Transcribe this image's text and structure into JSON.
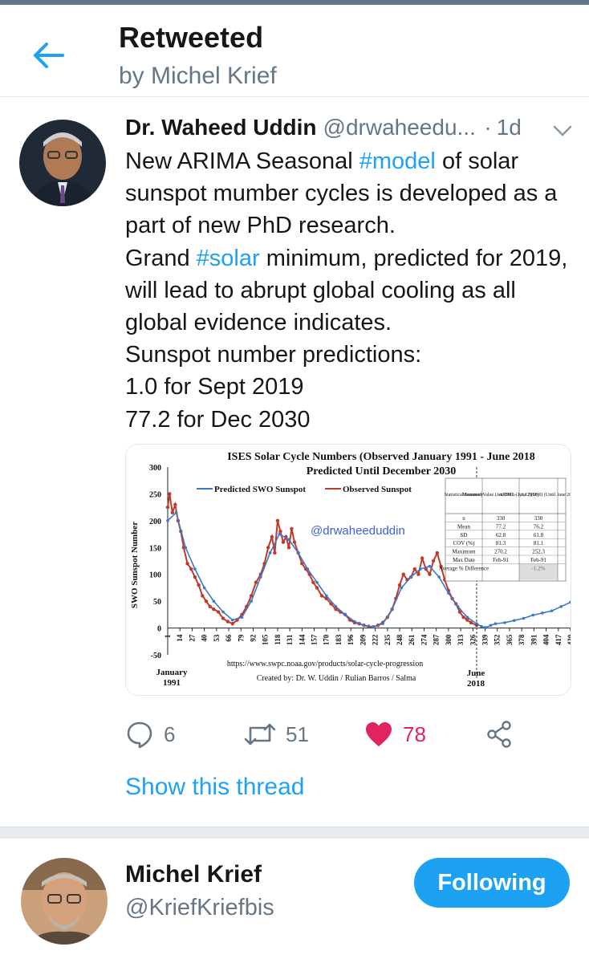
{
  "header": {
    "title": "Retweeted",
    "subtitle": "by Michel Krief",
    "back_icon": "arrow-left-icon"
  },
  "tweet": {
    "author_name": "Dr. Waheed Uddin",
    "author_handle": "@drwaheedu...",
    "separator": "·",
    "time": "1d",
    "body_segments": [
      {
        "text": "New ARIMA Seasonal ",
        "type": "text"
      },
      {
        "text": "#model",
        "type": "hashtag"
      },
      {
        "text": " of solar sunspot mumber cycles is developed as a part of new PhD research.",
        "type": "text"
      },
      {
        "text": "\n",
        "type": "break"
      },
      {
        "text": "Grand ",
        "type": "text"
      },
      {
        "text": "#solar",
        "type": "hashtag"
      },
      {
        "text": " minimum, predicted for 2019, will lead to abrupt global cooling as all global evidence indicates.",
        "type": "text"
      },
      {
        "text": "\n",
        "type": "break"
      },
      {
        "text": "Sunspot number predictions:",
        "type": "text"
      },
      {
        "text": "\n",
        "type": "break"
      },
      {
        "text": "1.0 for  Sept 2019",
        "type": "text"
      },
      {
        "text": "\n",
        "type": "break"
      },
      {
        "text": "77.2 for Dec 2030",
        "type": "text"
      }
    ],
    "actions": {
      "replies": "6",
      "retweets": "51",
      "likes": "78",
      "reply_icon": "reply-bubble-icon",
      "retweet_icon": "retweet-icon",
      "like_icon": "heart-icon",
      "share_icon": "share-icon"
    },
    "show_thread": "Show this thread"
  },
  "chart_image": {
    "title_line1": "ISES Solar Cycle Numbers (Observed January 1991 - June 2018",
    "title_line2": "Predicted Until December 2030",
    "ylabel": "SWO Sunspot Number",
    "watermark": "@drwaheeduddin",
    "credit_url": "https://www.swpc.noaa.gov/products/solar-cycle-progression",
    "credit_by": "Created by: Dr. W. Uddin / Rulian Barros / Salma",
    "x_start_label": [
      "January",
      "1991"
    ],
    "x_june_label": [
      "June",
      "2018"
    ],
    "legend": [
      "Predicted SWO Sunspot",
      "Observed Sunspot"
    ],
    "table": {
      "headers": [
        "Statistical Summary",
        "Measured Value (Jan 1991 - June 2018)",
        "ARIMA (1,1,12)(60,0) (Until June 2018)"
      ],
      "rows": [
        [
          "n",
          "330",
          "330"
        ],
        [
          "Mean",
          "77.2",
          "76.2"
        ],
        [
          "SD",
          "62.8",
          "61.8"
        ],
        [
          "COV (%)",
          "81.3",
          "81.1"
        ],
        [
          "Maximum",
          "270.2",
          "252.3"
        ],
        [
          "Max Date",
          "Feb-91",
          "Feb-91"
        ],
        [
          "Average % Difference",
          "",
          "-1.2%"
        ]
      ]
    },
    "chart_data": {
      "type": "line",
      "title": "ISES Solar Cycle Numbers (Observed January 1991 - June 2018 Predicted Until December 2030",
      "xlabel": "",
      "ylabel": "SWO Sunspot Number",
      "ylim": [
        -50,
        300
      ],
      "yticks": [
        -50,
        0,
        50,
        100,
        150,
        200,
        250,
        300
      ],
      "xticks": [
        1,
        14,
        27,
        40,
        53,
        66,
        79,
        92,
        105,
        118,
        131,
        144,
        157,
        170,
        183,
        196,
        209,
        222,
        235,
        248,
        261,
        274,
        287,
        300,
        313,
        326,
        339,
        352,
        365,
        378,
        391,
        404,
        417,
        430
      ],
      "series": [
        {
          "name": "Observed Sunspot",
          "color": "#c0392b",
          "x": [
            1,
            3,
            6,
            9,
            12,
            15,
            18,
            22,
            26,
            30,
            34,
            38,
            42,
            46,
            50,
            55,
            60,
            65,
            70,
            75,
            80,
            85,
            90,
            95,
            100,
            104,
            108,
            112,
            115,
            118,
            121,
            124,
            127,
            130,
            133,
            136,
            140,
            144,
            148,
            152,
            156,
            160,
            165,
            170,
            175,
            180,
            185,
            190,
            195,
            200,
            205,
            210,
            215,
            220,
            225,
            230,
            235,
            240,
            244,
            248,
            252,
            256,
            260,
            264,
            268,
            272,
            276,
            280,
            284,
            288,
            292,
            296,
            300,
            304,
            308,
            312,
            316,
            320,
            324,
            330
          ],
          "y": [
            225,
            250,
            215,
            230,
            200,
            180,
            150,
            120,
            110,
            95,
            80,
            60,
            50,
            40,
            35,
            30,
            18,
            12,
            8,
            15,
            25,
            40,
            60,
            85,
            100,
            120,
            150,
            170,
            140,
            200,
            180,
            160,
            170,
            150,
            185,
            160,
            140,
            120,
            110,
            100,
            85,
            75,
            60,
            55,
            45,
            35,
            30,
            25,
            15,
            10,
            8,
            5,
            3,
            2,
            5,
            10,
            20,
            35,
            55,
            80,
            100,
            90,
            95,
            110,
            100,
            130,
            110,
            100,
            125,
            140,
            115,
            90,
            70,
            55,
            45,
            30,
            20,
            15,
            10,
            5
          ]
        },
        {
          "name": "Predicted SWO Sunspot",
          "color": "#3c78c8",
          "x": [
            1,
            10,
            20,
            30,
            40,
            50,
            60,
            70,
            80,
            90,
            100,
            110,
            120,
            130,
            140,
            150,
            160,
            170,
            180,
            190,
            200,
            210,
            220,
            230,
            240,
            250,
            260,
            270,
            280,
            290,
            300,
            310,
            320,
            330,
            335,
            340,
            345,
            350,
            360,
            370,
            380,
            390,
            400,
            410,
            420,
            430
          ],
          "y": [
            200,
            215,
            150,
            110,
            75,
            50,
            30,
            15,
            20,
            50,
            95,
            140,
            175,
            165,
            140,
            110,
            85,
            60,
            40,
            25,
            12,
            5,
            2,
            8,
            35,
            75,
            95,
            110,
            115,
            95,
            65,
            40,
            20,
            8,
            3,
            1,
            5,
            8,
            10,
            14,
            18,
            24,
            28,
            32,
            40,
            48
          ]
        }
      ]
    }
  }
}
